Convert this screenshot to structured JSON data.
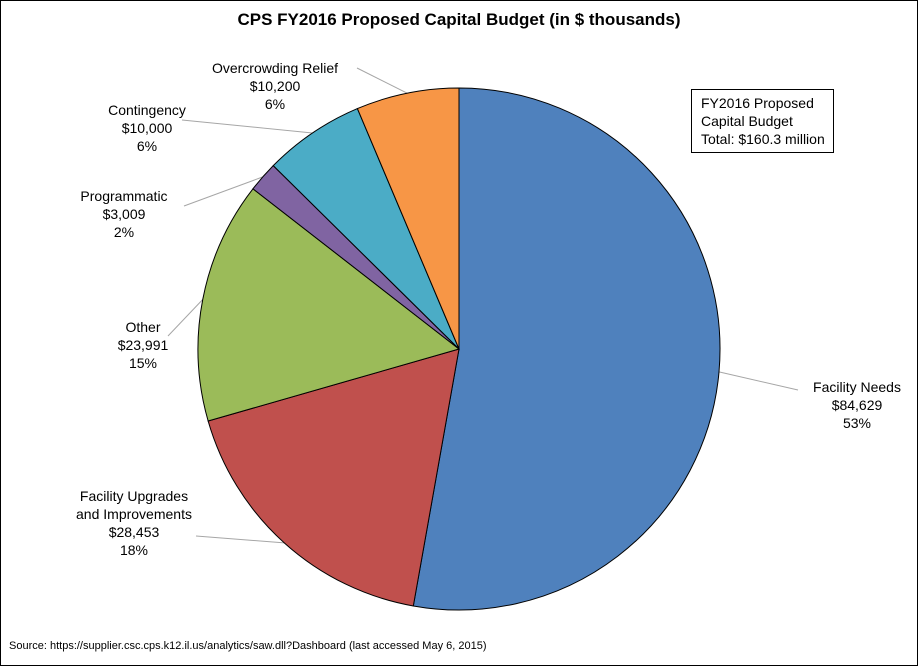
{
  "chart_data": {
    "type": "pie",
    "title": "CPS FY2016 Proposed Capital Budget (in $ thousands)",
    "slices": [
      {
        "label_lines": [
          "Facility Needs"
        ],
        "value_text": "$84,629",
        "pct_text": "53%",
        "value": 84629,
        "color": "#4f81bd"
      },
      {
        "label_lines": [
          "Facility Upgrades",
          "and Improvements"
        ],
        "value_text": "$28,453",
        "pct_text": "18%",
        "value": 28453,
        "color": "#c0504d"
      },
      {
        "label_lines": [
          "Other"
        ],
        "value_text": "$23,991",
        "pct_text": "15%",
        "value": 23991,
        "color": "#9bbb59"
      },
      {
        "label_lines": [
          "Programmatic"
        ],
        "value_text": "$3,009",
        "pct_text": "2%",
        "value": 3009,
        "color": "#8064a2"
      },
      {
        "label_lines": [
          "Contingency"
        ],
        "value_text": "$10,000",
        "pct_text": "6%",
        "value": 10000,
        "color": "#4bacc6"
      },
      {
        "label_lines": [
          "Overcrowding Relief"
        ],
        "value_text": "$10,200",
        "pct_text": "6%",
        "value": 10200,
        "color": "#f79646"
      }
    ],
    "annotation": {
      "lines": [
        "FY2016 Proposed",
        "Capital Budget",
        "Total: $160.3 million"
      ]
    },
    "source": "Source: https://supplier.csc.cps.k12.il.us/analytics/saw.dll?Dashboard (last accessed May 6, 2015)"
  }
}
